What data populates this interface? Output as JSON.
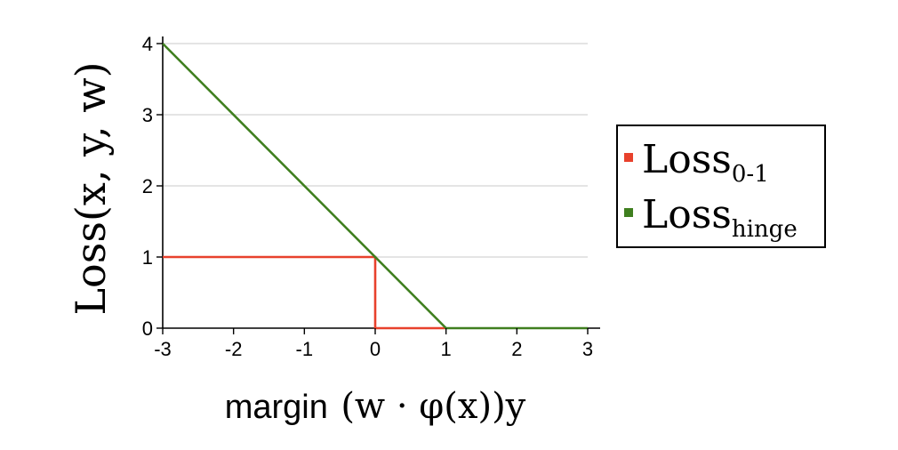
{
  "chart_data": {
    "type": "line",
    "x": [
      -3,
      -2,
      -1,
      0,
      1,
      2,
      3
    ],
    "xlim": [
      -3,
      3
    ],
    "ylim": [
      0,
      4
    ],
    "x_ticks": [
      "-3",
      "-2",
      "-1",
      "0",
      "1",
      "2",
      "3"
    ],
    "y_ticks": [
      "0",
      "1",
      "2",
      "3",
      "4"
    ],
    "grid": true,
    "xlabel": {
      "prefix": "margin",
      "expression": "(w · φ(x))y"
    },
    "ylabel": "Loss(x, y, w)",
    "legend_position": "right",
    "series": [
      {
        "key": "zero_one",
        "name_base": "Loss",
        "name_sub": "0-1",
        "color": "#e8412c",
        "points": [
          [
            -3,
            1
          ],
          [
            0,
            1
          ],
          [
            0,
            0
          ],
          [
            1,
            0
          ]
        ]
      },
      {
        "key": "hinge",
        "name_base": "Loss",
        "name_sub": "hinge",
        "color": "#3f7f1f",
        "points": [
          [
            -3,
            4
          ],
          [
            1,
            0
          ],
          [
            3,
            0
          ]
        ]
      }
    ]
  }
}
